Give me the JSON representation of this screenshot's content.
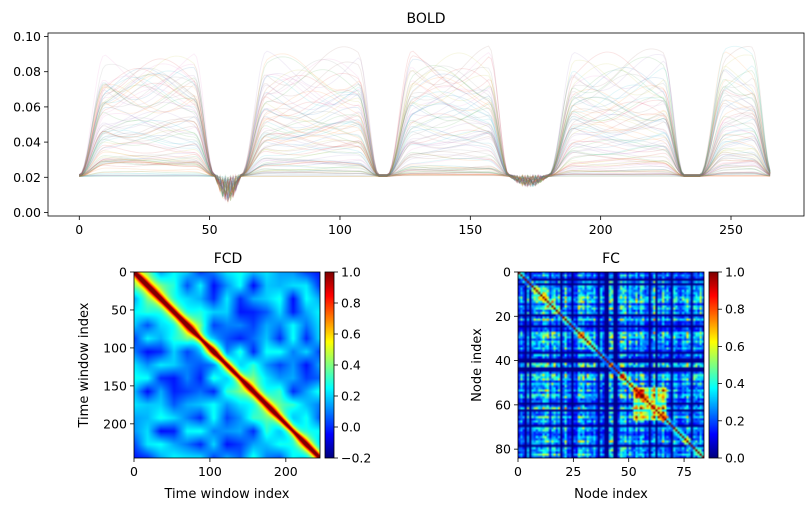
{
  "chart_data": [
    {
      "type": "line",
      "title": "BOLD",
      "xlabel": "",
      "ylabel": "",
      "xlim": [
        -12,
        278
      ],
      "ylim": [
        -0.002,
        0.102
      ],
      "xticks": [
        0,
        50,
        100,
        150,
        200,
        250
      ],
      "yticks": [
        0.0,
        0.02,
        0.04,
        0.06,
        0.08,
        0.1
      ],
      "ytick_labels": [
        "0.00",
        "0.02",
        "0.04",
        "0.06",
        "0.08",
        "0.10"
      ],
      "n_series": 84,
      "n_timepoints": 266,
      "series_alpha": 0.12,
      "baseline": 0.021,
      "grid": false,
      "legend": "none",
      "active_episodes": [
        {
          "x_start": 0,
          "x_end": 52,
          "peak_center": 38,
          "peak": 0.095
        },
        {
          "x_start": 62,
          "x_end": 115,
          "peak_center": 100,
          "peak": 0.094
        },
        {
          "x_start": 118,
          "x_end": 165,
          "peak_center": 135,
          "peak": 0.097
        },
        {
          "x_start": 180,
          "x_end": 232,
          "peak_center": 197,
          "peak": 0.093
        },
        {
          "x_start": 238,
          "x_end": 266,
          "peak_center": 250,
          "peak": 0.095
        }
      ],
      "dips": [
        {
          "x_start": 52,
          "x_end": 62,
          "min": 0.004
        },
        {
          "x_start": 165,
          "x_end": 180,
          "min": 0.014
        }
      ]
    },
    {
      "type": "heatmap",
      "title": "FCD",
      "xlabel": "Time window index",
      "ylabel": "Time window index",
      "size": 245,
      "xticks": [
        0,
        100,
        200
      ],
      "yticks": [
        0,
        50,
        100,
        150,
        200
      ],
      "colormap": "jet",
      "colorbar": {
        "min": -0.2,
        "max": 1.0,
        "ticks": [
          "1.0",
          "0.8",
          "0.6",
          "0.4",
          "0.2",
          "0.0",
          "−0.2"
        ]
      },
      "diagonal": 1.0,
      "off_diagonal_typical": 0.1
    },
    {
      "type": "heatmap",
      "title": "FC",
      "xlabel": "Node index",
      "ylabel": "Node index",
      "size": 84,
      "xticks": [
        0,
        25,
        50,
        75
      ],
      "yticks": [
        0,
        20,
        40,
        60,
        80
      ],
      "colormap": "jet",
      "colorbar": {
        "min": 0.0,
        "max": 1.0,
        "ticks": [
          "1.0",
          "0.8",
          "0.6",
          "0.4",
          "0.2",
          "0.0"
        ]
      },
      "diagonal": 1.0,
      "off_diagonal_typical": 0.3
    }
  ]
}
